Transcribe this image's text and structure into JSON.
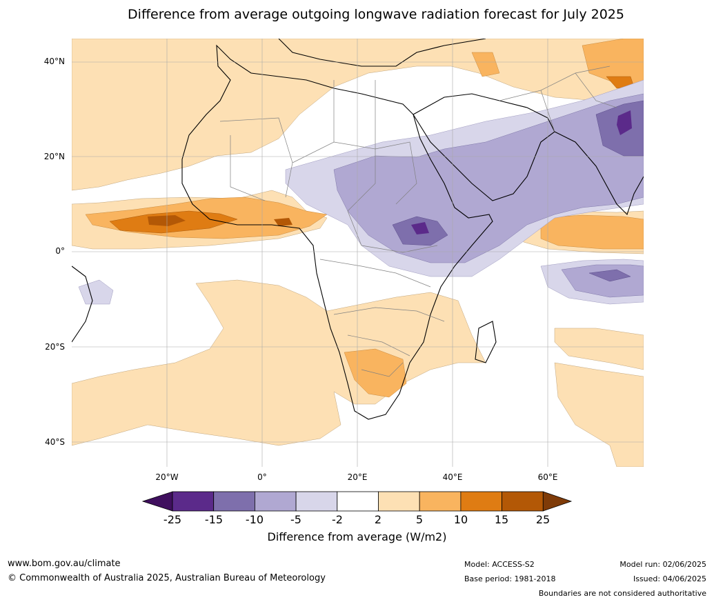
{
  "title": "Difference from average outgoing longwave radiation forecast for July 2025",
  "lat_labels": [
    "40°N",
    "20°N",
    "0°",
    "20°S",
    "40°S"
  ],
  "lon_labels": [
    "20°W",
    "0°",
    "20°E",
    "40°E",
    "60°E"
  ],
  "colorbar": {
    "ticks": [
      "-25",
      "-15",
      "-10",
      "-5",
      "-2",
      "2",
      "5",
      "10",
      "15",
      "25"
    ],
    "colors": [
      "#3f0f5e",
      "#5b2a8a",
      "#7e6fac",
      "#b0a8d2",
      "#d8d6ea",
      "#ffffff",
      "#fde0b4",
      "#f9b45f",
      "#df7c13",
      "#b35806",
      "#7f3b08"
    ],
    "label": "Difference from average (W/m2)"
  },
  "footer": {
    "url": "www.bom.gov.au/climate",
    "copyright": "© Commonwealth of Australia 2025, Australian Bureau of Meteorology",
    "model": "Model: ACCESS-S2",
    "base_period": "Base period: 1981-2018",
    "model_run": "Model run: 02/06/2025",
    "issued": "Issued: 04/06/2025",
    "disclaimer": "Boundaries are not considered authoritative"
  }
}
